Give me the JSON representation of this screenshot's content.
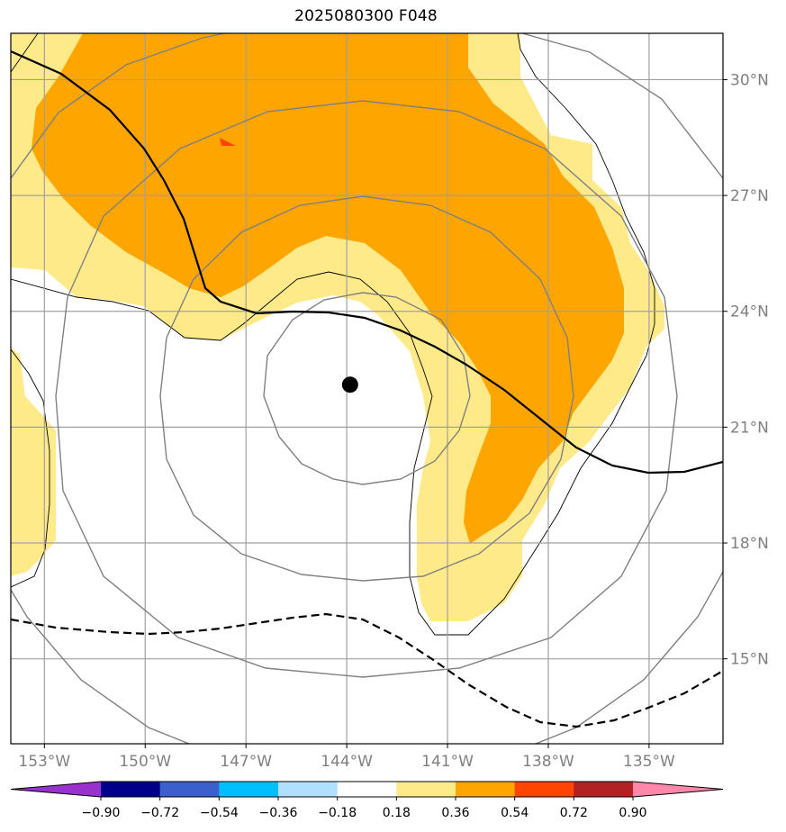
{
  "title": "2025080300 F048",
  "map": {
    "lon_range": [
      -154.0,
      -132.8
    ],
    "lat_range": [
      12.8,
      31.2
    ],
    "lat_ticks": [
      {
        "value": 30,
        "label": "30°N"
      },
      {
        "value": 27,
        "label": "27°N"
      },
      {
        "value": 24,
        "label": "24°N"
      },
      {
        "value": 21,
        "label": "21°N"
      },
      {
        "value": 18,
        "label": "18°N"
      },
      {
        "value": 15,
        "label": "15°N"
      }
    ],
    "lon_ticks": [
      {
        "value": -153,
        "label": "153°W"
      },
      {
        "value": -150,
        "label": "150°W"
      },
      {
        "value": -147,
        "label": "147°W"
      },
      {
        "value": -144,
        "label": "144°W"
      },
      {
        "value": -141,
        "label": "141°W"
      },
      {
        "value": -138,
        "label": "138°W"
      },
      {
        "value": -135,
        "label": "135°W"
      }
    ],
    "storm_center": {
      "lon": -143.9,
      "lat": 22.1
    },
    "range_rings_deg": [
      2.6,
      5.5,
      8.5,
      11.4
    ],
    "grid_color": "#a0a0a0",
    "ring_color": "#808080"
  },
  "colorbar": {
    "colors": [
      "#9932cc",
      "#00008b",
      "#3b5fcd",
      "#00bfff",
      "#b0e0ff",
      "#ffffff",
      "#ffea8a",
      "#ffa500",
      "#ff4500",
      "#b22222",
      "#ff88aa"
    ],
    "tick_labels": [
      "−0.90",
      "−0.72",
      "−0.54",
      "−0.36",
      "−0.18",
      "0.18",
      "0.36",
      "0.54",
      "0.72",
      "0.90"
    ]
  },
  "shading": {
    "light_yellow": "#ffea8a",
    "orange": "#ffa500",
    "red_orange": "#ff4500"
  }
}
